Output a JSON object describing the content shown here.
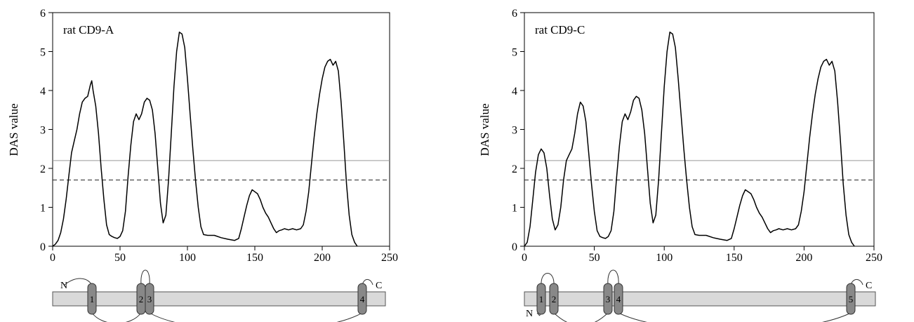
{
  "chart_data": [
    {
      "type": "line",
      "title": "rat CD9-A",
      "xlabel": "",
      "ylabel": "DAS value",
      "xlim": [
        0,
        250
      ],
      "ylim": [
        0,
        6
      ],
      "x_ticks": [
        "0",
        "50",
        "100",
        "150",
        "200",
        "250"
      ],
      "y_ticks": [
        "0",
        "1",
        "2",
        "3",
        "4",
        "5",
        "6"
      ],
      "grid": false,
      "reference_lines": [
        {
          "style": "solid",
          "y": 2.2
        },
        {
          "style": "dashed",
          "y": 1.7
        }
      ],
      "series": [
        {
          "points": [
            [
              0,
              0
            ],
            [
              2,
              0.05
            ],
            [
              4,
              0.15
            ],
            [
              6,
              0.35
            ],
            [
              8,
              0.7
            ],
            [
              10,
              1.2
            ],
            [
              12,
              1.8
            ],
            [
              14,
              2.4
            ],
            [
              16,
              2.7
            ],
            [
              18,
              3.0
            ],
            [
              20,
              3.4
            ],
            [
              22,
              3.7
            ],
            [
              24,
              3.8
            ],
            [
              26,
              3.85
            ],
            [
              28,
              4.15
            ],
            [
              29,
              4.25
            ],
            [
              30,
              4.0
            ],
            [
              32,
              3.6
            ],
            [
              34,
              2.9
            ],
            [
              36,
              2.0
            ],
            [
              38,
              1.2
            ],
            [
              40,
              0.55
            ],
            [
              42,
              0.3
            ],
            [
              44,
              0.25
            ],
            [
              46,
              0.22
            ],
            [
              48,
              0.2
            ],
            [
              50,
              0.25
            ],
            [
              52,
              0.4
            ],
            [
              54,
              0.9
            ],
            [
              56,
              1.8
            ],
            [
              58,
              2.6
            ],
            [
              60,
              3.2
            ],
            [
              62,
              3.4
            ],
            [
              64,
              3.25
            ],
            [
              66,
              3.4
            ],
            [
              68,
              3.7
            ],
            [
              70,
              3.8
            ],
            [
              72,
              3.75
            ],
            [
              74,
              3.5
            ],
            [
              76,
              2.9
            ],
            [
              78,
              2.0
            ],
            [
              80,
              1.1
            ],
            [
              82,
              0.6
            ],
            [
              84,
              0.8
            ],
            [
              86,
              1.7
            ],
            [
              88,
              2.9
            ],
            [
              90,
              4.1
            ],
            [
              92,
              5.0
            ],
            [
              94,
              5.5
            ],
            [
              96,
              5.45
            ],
            [
              98,
              5.1
            ],
            [
              100,
              4.3
            ],
            [
              102,
              3.4
            ],
            [
              104,
              2.5
            ],
            [
              106,
              1.7
            ],
            [
              108,
              1.0
            ],
            [
              110,
              0.5
            ],
            [
              112,
              0.3
            ],
            [
              115,
              0.28
            ],
            [
              120,
              0.28
            ],
            [
              125,
              0.22
            ],
            [
              130,
              0.18
            ],
            [
              135,
              0.15
            ],
            [
              138,
              0.2
            ],
            [
              140,
              0.45
            ],
            [
              142,
              0.75
            ],
            [
              144,
              1.05
            ],
            [
              146,
              1.3
            ],
            [
              148,
              1.45
            ],
            [
              150,
              1.4
            ],
            [
              152,
              1.35
            ],
            [
              154,
              1.2
            ],
            [
              156,
              1.0
            ],
            [
              158,
              0.85
            ],
            [
              160,
              0.75
            ],
            [
              162,
              0.6
            ],
            [
              164,
              0.45
            ],
            [
              166,
              0.35
            ],
            [
              168,
              0.4
            ],
            [
              170,
              0.42
            ],
            [
              172,
              0.45
            ],
            [
              175,
              0.42
            ],
            [
              178,
              0.45
            ],
            [
              181,
              0.42
            ],
            [
              184,
              0.45
            ],
            [
              186,
              0.55
            ],
            [
              188,
              0.9
            ],
            [
              190,
              1.4
            ],
            [
              192,
              2.1
            ],
            [
              194,
              2.8
            ],
            [
              196,
              3.4
            ],
            [
              198,
              3.9
            ],
            [
              200,
              4.3
            ],
            [
              202,
              4.6
            ],
            [
              204,
              4.75
            ],
            [
              206,
              4.8
            ],
            [
              208,
              4.65
            ],
            [
              210,
              4.75
            ],
            [
              212,
              4.5
            ],
            [
              214,
              3.7
            ],
            [
              216,
              2.7
            ],
            [
              218,
              1.6
            ],
            [
              220,
              0.8
            ],
            [
              222,
              0.3
            ],
            [
              224,
              0.1
            ],
            [
              226,
              0
            ]
          ]
        }
      ],
      "topology": {
        "segments": [
          "1",
          "2",
          "3",
          "4"
        ],
        "n_label": "N",
        "c_label": "C"
      }
    },
    {
      "type": "line",
      "title": "rat CD9-C",
      "xlabel": "",
      "ylabel": "DAS value",
      "xlim": [
        0,
        250
      ],
      "ylim": [
        0,
        6
      ],
      "x_ticks": [
        "0",
        "50",
        "100",
        "150",
        "200",
        "250"
      ],
      "y_ticks": [
        "0",
        "1",
        "2",
        "3",
        "4",
        "5",
        "6"
      ],
      "grid": false,
      "reference_lines": [
        {
          "style": "solid",
          "y": 2.2
        },
        {
          "style": "dashed",
          "y": 1.7
        }
      ],
      "series": [
        {
          "points": [
            [
              0,
              0
            ],
            [
              2,
              0.1
            ],
            [
              4,
              0.5
            ],
            [
              6,
              1.2
            ],
            [
              8,
              1.9
            ],
            [
              10,
              2.35
            ],
            [
              12,
              2.5
            ],
            [
              14,
              2.4
            ],
            [
              16,
              2.0
            ],
            [
              18,
              1.3
            ],
            [
              20,
              0.7
            ],
            [
              22,
              0.42
            ],
            [
              24,
              0.55
            ],
            [
              26,
              1.0
            ],
            [
              28,
              1.7
            ],
            [
              30,
              2.2
            ],
            [
              32,
              2.35
            ],
            [
              34,
              2.5
            ],
            [
              36,
              2.9
            ],
            [
              38,
              3.4
            ],
            [
              40,
              3.7
            ],
            [
              42,
              3.6
            ],
            [
              44,
              3.2
            ],
            [
              46,
              2.4
            ],
            [
              48,
              1.6
            ],
            [
              50,
              0.9
            ],
            [
              52,
              0.4
            ],
            [
              54,
              0.25
            ],
            [
              56,
              0.22
            ],
            [
              58,
              0.2
            ],
            [
              60,
              0.25
            ],
            [
              62,
              0.4
            ],
            [
              64,
              0.9
            ],
            [
              66,
              1.8
            ],
            [
              68,
              2.6
            ],
            [
              70,
              3.2
            ],
            [
              72,
              3.4
            ],
            [
              74,
              3.25
            ],
            [
              76,
              3.45
            ],
            [
              78,
              3.75
            ],
            [
              80,
              3.85
            ],
            [
              82,
              3.8
            ],
            [
              84,
              3.5
            ],
            [
              86,
              2.9
            ],
            [
              88,
              2.0
            ],
            [
              90,
              1.1
            ],
            [
              92,
              0.6
            ],
            [
              94,
              0.8
            ],
            [
              96,
              1.7
            ],
            [
              98,
              2.9
            ],
            [
              100,
              4.1
            ],
            [
              102,
              5.0
            ],
            [
              104,
              5.5
            ],
            [
              106,
              5.45
            ],
            [
              108,
              5.1
            ],
            [
              110,
              4.3
            ],
            [
              112,
              3.4
            ],
            [
              114,
              2.5
            ],
            [
              116,
              1.7
            ],
            [
              118,
              1.0
            ],
            [
              120,
              0.5
            ],
            [
              122,
              0.3
            ],
            [
              125,
              0.28
            ],
            [
              130,
              0.28
            ],
            [
              135,
              0.22
            ],
            [
              140,
              0.18
            ],
            [
              145,
              0.15
            ],
            [
              148,
              0.2
            ],
            [
              150,
              0.45
            ],
            [
              152,
              0.75
            ],
            [
              154,
              1.05
            ],
            [
              156,
              1.3
            ],
            [
              158,
              1.45
            ],
            [
              160,
              1.4
            ],
            [
              162,
              1.35
            ],
            [
              164,
              1.2
            ],
            [
              166,
              1.0
            ],
            [
              168,
              0.85
            ],
            [
              170,
              0.75
            ],
            [
              172,
              0.6
            ],
            [
              174,
              0.45
            ],
            [
              176,
              0.35
            ],
            [
              178,
              0.4
            ],
            [
              180,
              0.42
            ],
            [
              182,
              0.45
            ],
            [
              185,
              0.42
            ],
            [
              188,
              0.45
            ],
            [
              191,
              0.42
            ],
            [
              194,
              0.45
            ],
            [
              196,
              0.55
            ],
            [
              198,
              0.9
            ],
            [
              200,
              1.4
            ],
            [
              202,
              2.1
            ],
            [
              204,
              2.8
            ],
            [
              206,
              3.4
            ],
            [
              208,
              3.9
            ],
            [
              210,
              4.3
            ],
            [
              212,
              4.6
            ],
            [
              214,
              4.75
            ],
            [
              216,
              4.8
            ],
            [
              218,
              4.65
            ],
            [
              220,
              4.75
            ],
            [
              222,
              4.5
            ],
            [
              224,
              3.7
            ],
            [
              226,
              2.7
            ],
            [
              228,
              1.6
            ],
            [
              230,
              0.8
            ],
            [
              232,
              0.3
            ],
            [
              234,
              0.1
            ],
            [
              236,
              0
            ]
          ]
        }
      ],
      "topology": {
        "segments": [
          "1",
          "2",
          "3",
          "4",
          "5"
        ],
        "n_label": "N",
        "c_label": "C"
      }
    }
  ]
}
